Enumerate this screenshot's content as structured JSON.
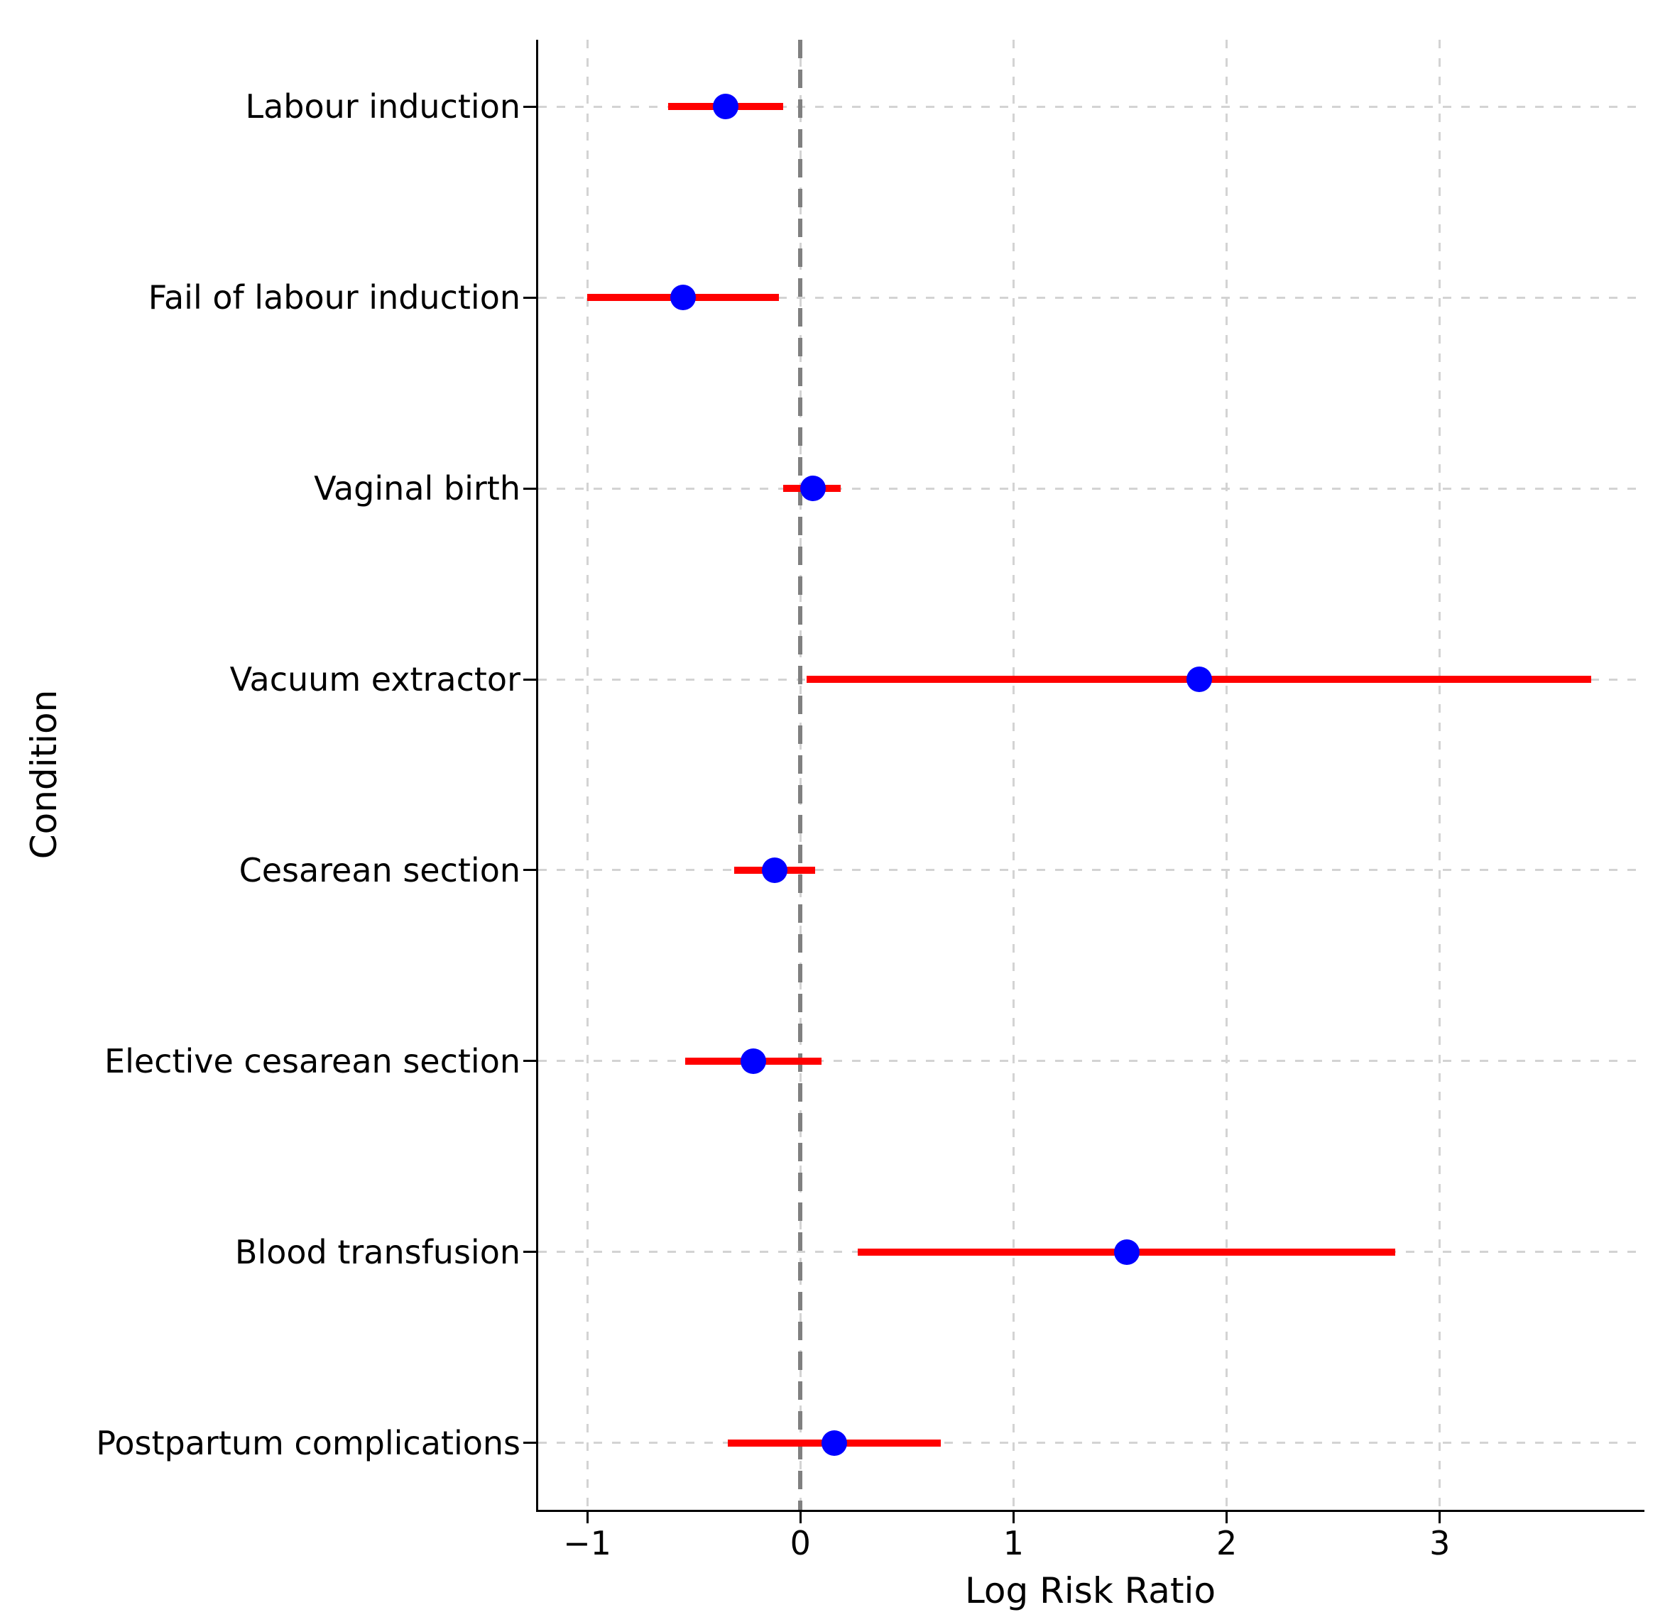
{
  "chart_data": {
    "type": "scatter",
    "variant": "forest-plot",
    "title": "",
    "xlabel": "Log Risk Ratio",
    "ylabel": "Condition",
    "categories": [
      "Labour induction",
      "Fail of labour induction",
      "Vaginal birth",
      "Vacuum extractor",
      "Cesarean section",
      "Elective cesarean section",
      "Blood transfusion",
      "Postpartum complications"
    ],
    "points": [
      {
        "label": "Labour induction",
        "log_risk_ratio": -0.35,
        "ci_lower": -0.62,
        "ci_upper": -0.08
      },
      {
        "label": "Fail of labour induction",
        "log_risk_ratio": -0.55,
        "ci_lower": -1.0,
        "ci_upper": -0.1
      },
      {
        "label": "Vaginal birth",
        "log_risk_ratio": 0.06,
        "ci_lower": -0.08,
        "ci_upper": 0.19
      },
      {
        "label": "Vacuum extractor",
        "log_risk_ratio": 1.87,
        "ci_lower": 0.03,
        "ci_upper": 3.71
      },
      {
        "label": "Cesarean section",
        "log_risk_ratio": -0.12,
        "ci_lower": -0.31,
        "ci_upper": 0.07
      },
      {
        "label": "Elective cesarean section",
        "log_risk_ratio": -0.22,
        "ci_lower": -0.54,
        "ci_upper": 0.1
      },
      {
        "label": "Blood transfusion",
        "log_risk_ratio": 1.53,
        "ci_lower": 0.27,
        "ci_upper": 2.79
      },
      {
        "label": "Postpartum complications",
        "log_risk_ratio": 0.16,
        "ci_lower": -0.34,
        "ci_upper": 0.66
      }
    ],
    "x_ticks": [
      -1,
      0,
      1,
      2,
      3
    ],
    "x_tick_labels": [
      "−1",
      "0",
      "1",
      "2",
      "3"
    ],
    "xlim": [
      -1.23,
      3.95
    ],
    "reference_line_x": 0,
    "grid": true,
    "legend": "none",
    "colors": {
      "marker": "#0000ff",
      "error_bar": "#ff0000",
      "reference_line": "#808080",
      "gridline": "#d3d3d3",
      "axis": "#000000",
      "background": "#ffffff"
    }
  }
}
